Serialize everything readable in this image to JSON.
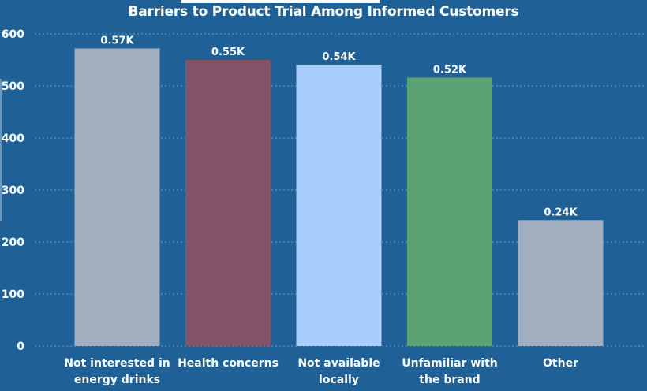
{
  "chart_data": {
    "type": "bar",
    "title": "Barriers to Product Trial Among Informed Customers",
    "xlabel": "",
    "ylabel": "",
    "ylim": [
      0,
      600
    ],
    "yticks": [
      0,
      100,
      200,
      300,
      400,
      500,
      600
    ],
    "grid": true,
    "categories": [
      [
        "Not interested in",
        "energy drinks"
      ],
      [
        "Health concerns"
      ],
      [
        "Not available",
        "locally"
      ],
      [
        "Unfamiliar with",
        "the brand"
      ],
      [
        "Other"
      ]
    ],
    "values": [
      572,
      550,
      541,
      516,
      242
    ],
    "data_labels": [
      "0.57K",
      "0.55K",
      "0.54K",
      "0.52K",
      "0.24K"
    ],
    "colors": [
      "#a0aec0",
      "#835468",
      "#a8cdfd",
      "#5ba372",
      "#a0aec0"
    ]
  },
  "colors": {
    "background": "#1f6096",
    "text": "#ffffff"
  }
}
